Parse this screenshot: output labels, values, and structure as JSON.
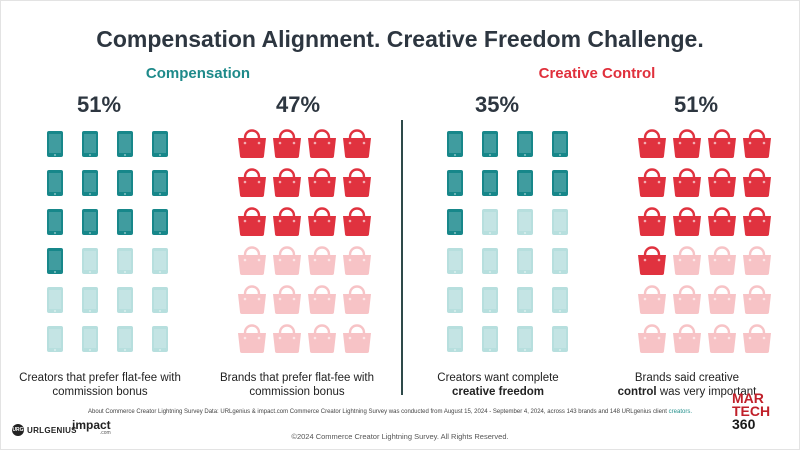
{
  "title": "Compensation Alignment. Creative Freedom Challenge.",
  "sections": {
    "compensation": {
      "label": "Compensation",
      "color": "#1e8a8a"
    },
    "creative_control": {
      "label": "Creative Control",
      "color": "#e0303c"
    }
  },
  "colors": {
    "teal_filled": "#17878a",
    "teal_faded": "#b7dfde",
    "red_filled": "#e0323f",
    "red_faded": "#f7c3c6"
  },
  "chart_data": [
    {
      "type": "pictogram",
      "group": "Compensation",
      "icon": "phone-icon",
      "percent_label": "51%",
      "value": 51,
      "grid": [
        4,
        6
      ],
      "filled_icons": 13,
      "total_icons": 24,
      "caption": "Creators that prefer flat-fee with commission bonus"
    },
    {
      "type": "pictogram",
      "group": "Compensation",
      "icon": "shopping-bag-icon",
      "percent_label": "47%",
      "value": 47,
      "grid": [
        4,
        6
      ],
      "filled_icons": 12,
      "total_icons": 24,
      "caption": "Brands that prefer flat-fee with commission bonus"
    },
    {
      "type": "pictogram",
      "group": "Creative Control",
      "icon": "phone-icon",
      "percent_label": "35%",
      "value": 35,
      "grid": [
        4,
        6
      ],
      "filled_icons": 9,
      "total_icons": 24,
      "caption_plain": "Creators want complete",
      "caption_bold": "creative freedom"
    },
    {
      "type": "pictogram",
      "group": "Creative Control",
      "icon": "shopping-bag-icon",
      "percent_label": "51%",
      "value": 51,
      "grid": [
        4,
        6
      ],
      "filled_icons": 13,
      "total_icons": 24,
      "caption_plain": "Brands said creative",
      "caption_bold": "control",
      "caption_tail": "was very important"
    }
  ],
  "footnote": {
    "text": "About Commerce Creator Lightning Survey Data: URLgenius & impact.com Commerce Creator Lightning Survey was conducted from August 15, 2024 - September 4, 2024, across 143 brands and 148 URLgenius client",
    "highlight": "creators."
  },
  "copyright": "©2024 Commerce Creator Lightning Survey. All Rights Reserved.",
  "logos": {
    "urlgenius_badge": "URG",
    "urlgenius": "URLGENIUS",
    "impact": "impact",
    "impact_sub": ".com",
    "martech_1": "MAR",
    "martech_2": "TECH",
    "martech_3": "360"
  }
}
